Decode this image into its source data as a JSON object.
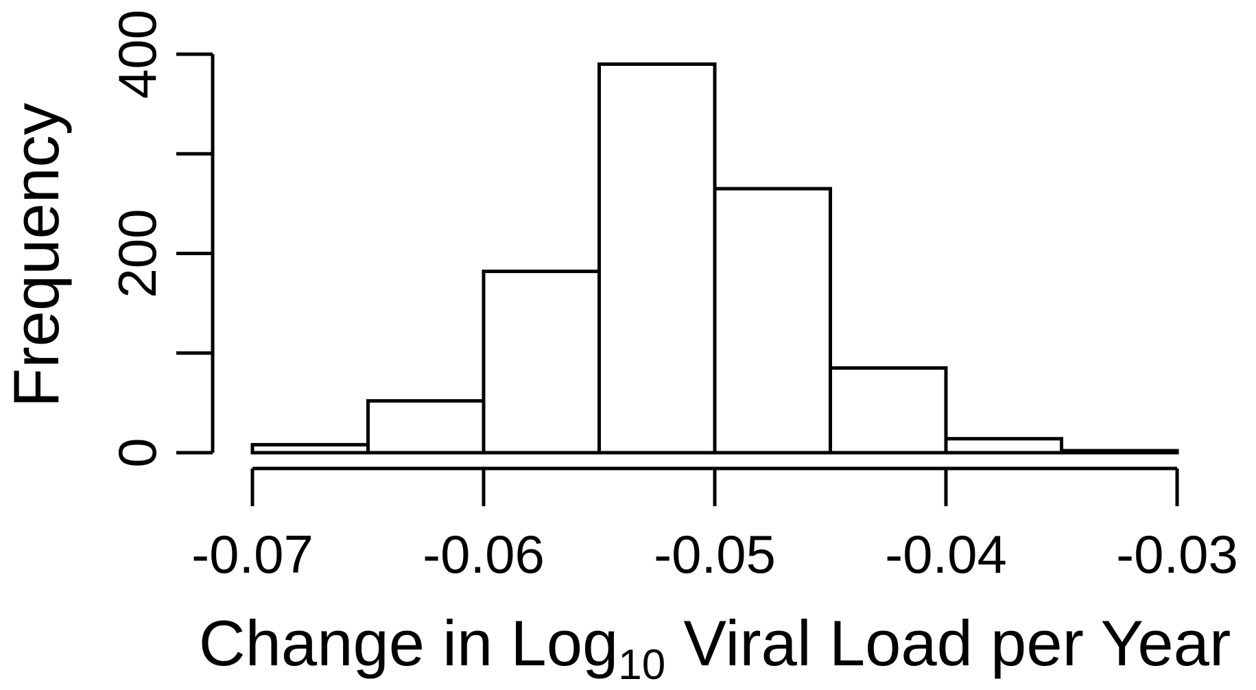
{
  "chart_data": {
    "type": "histogram",
    "title": "",
    "xlabel": "Change in Log10 Viral Load per Year",
    "xlabel_parts": [
      {
        "text": "Change in Log"
      },
      {
        "text": "10",
        "subscript": true
      },
      {
        "text": " Viral Load per Year"
      }
    ],
    "ylabel": "Frequency",
    "bin_start": -0.07,
    "bin_width": 0.005,
    "bin_edges": [
      -0.07,
      -0.065,
      -0.06,
      -0.055,
      -0.05,
      -0.045,
      -0.04,
      -0.035,
      -0.03
    ],
    "counts": [
      8,
      52,
      182,
      390,
      265,
      85,
      14,
      2
    ],
    "x_ticks": [
      {
        "value": -0.07,
        "label": "-0.07"
      },
      {
        "value": -0.06,
        "label": "-0.06"
      },
      {
        "value": -0.05,
        "label": "-0.05"
      },
      {
        "value": -0.04,
        "label": "-0.04"
      },
      {
        "value": -0.03,
        "label": "-0.03"
      }
    ],
    "y_ticks": [
      {
        "value": 0,
        "label": "0"
      },
      {
        "value": 100,
        "label": ""
      },
      {
        "value": 200,
        "label": "200"
      },
      {
        "value": 300,
        "label": ""
      },
      {
        "value": 400,
        "label": "400"
      }
    ],
    "xlim": [
      -0.07,
      -0.03
    ],
    "ylim": [
      0,
      400
    ],
    "legend": null,
    "grid": false,
    "bar_fill": "#ffffff",
    "bar_stroke": "#000000",
    "axis_color": "#000000",
    "text_color": "#000000",
    "background": "#ffffff"
  }
}
